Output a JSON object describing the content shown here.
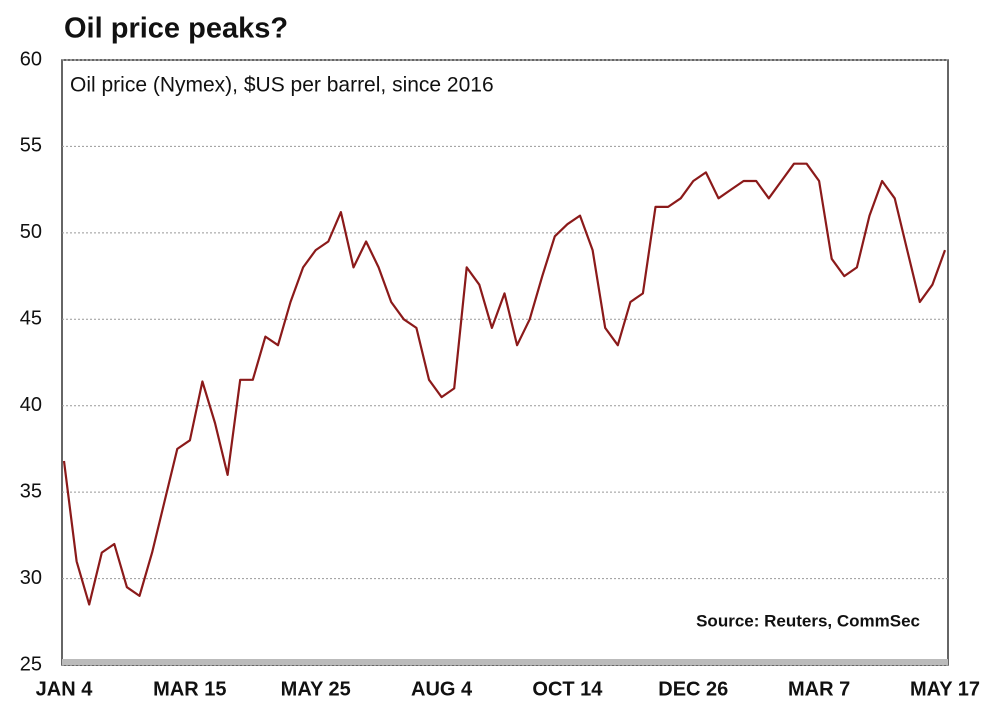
{
  "chart_data": {
    "type": "line",
    "title": "Oil price peaks?",
    "subtitle": "Oil price (Nymex), $US per barrel, since 2016",
    "annotation": "Source: Reuters, CommSec",
    "categories": [
      "JAN 4",
      null,
      null,
      null,
      null,
      null,
      null,
      null,
      null,
      null,
      "MAR 15",
      null,
      null,
      null,
      null,
      null,
      null,
      null,
      null,
      null,
      "MAY 25",
      null,
      null,
      null,
      null,
      null,
      null,
      null,
      null,
      null,
      "AUG 4",
      null,
      null,
      null,
      null,
      null,
      null,
      null,
      null,
      null,
      "OCT 14",
      null,
      null,
      null,
      null,
      null,
      null,
      null,
      null,
      null,
      "DEC 26",
      null,
      null,
      null,
      null,
      null,
      null,
      null,
      null,
      null,
      "MAR 7",
      null,
      null,
      null,
      null,
      null,
      null,
      null,
      null,
      null,
      "MAY 17"
    ],
    "series": [
      {
        "name": "Oil price",
        "color": "#8b1a1a",
        "values": [
          36.8,
          31,
          28.5,
          31.5,
          32,
          29.5,
          29,
          31.5,
          34.5,
          37.5,
          38,
          41.4,
          39,
          36,
          41.5,
          41.5,
          44,
          43.5,
          46,
          48,
          49,
          49.5,
          51.2,
          48,
          49.5,
          48,
          46,
          45,
          44.5,
          41.5,
          40.5,
          41,
          48,
          47,
          44.5,
          46.5,
          43.5,
          45,
          47.5,
          49.8,
          50.5,
          51,
          49,
          44.5,
          43.5,
          46,
          46.5,
          51.5,
          51.5,
          52,
          53,
          53.5,
          52,
          52.5,
          53,
          53,
          52,
          53,
          54,
          54,
          53,
          48.5,
          47.5,
          48,
          51,
          53,
          52,
          49,
          46,
          47,
          49
        ]
      }
    ],
    "ylim": [
      25,
      60
    ],
    "yticks": [
      25,
      30,
      35,
      40,
      45,
      50,
      55,
      60
    ],
    "grid": true
  }
}
